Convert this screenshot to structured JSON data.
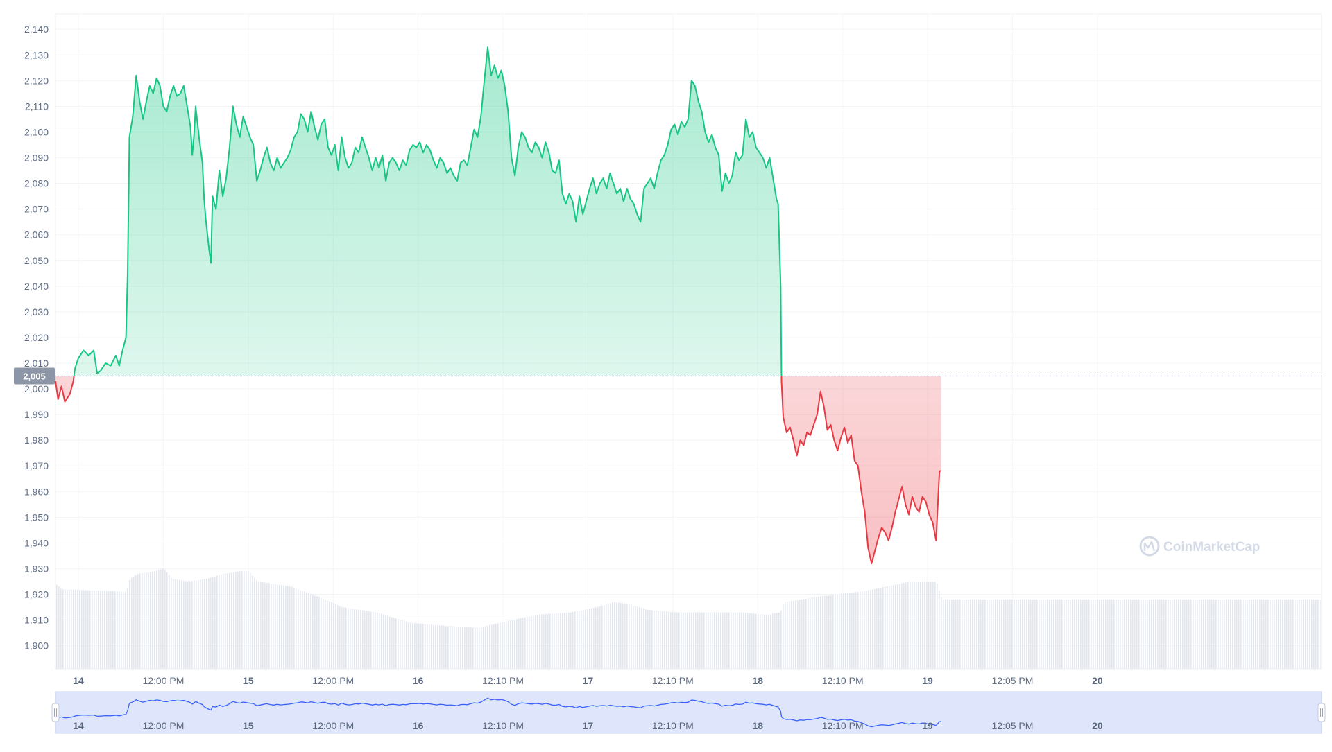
{
  "chart_data": {
    "type": "area",
    "y_ticks": [
      1900,
      1910,
      1920,
      1930,
      1940,
      1950,
      1960,
      1970,
      1980,
      1990,
      2000,
      2010,
      2020,
      2030,
      2040,
      2050,
      2060,
      2070,
      2080,
      2090,
      2100,
      2110,
      2120,
      2130,
      2140
    ],
    "y_tick_labels": [
      "1,900",
      "1,910",
      "1,920",
      "1,930",
      "1,940",
      "1,950",
      "1,960",
      "1,970",
      "1,980",
      "1,990",
      "2,000",
      "2,010",
      "2,020",
      "2,030",
      "2,040",
      "2,050",
      "2,060",
      "2,070",
      "2,080",
      "2,090",
      "2,100",
      "2,110",
      "2,120",
      "2,130",
      "2,140"
    ],
    "ylim": [
      1891,
      2146
    ],
    "x_ticks": [
      {
        "label": "14",
        "t": 0.5,
        "bold": true
      },
      {
        "label": "12:00 PM",
        "t": 1.0,
        "bold": false
      },
      {
        "label": "15",
        "t": 1.5,
        "bold": true
      },
      {
        "label": "12:00 PM",
        "t": 2.0,
        "bold": false
      },
      {
        "label": "16",
        "t": 2.5,
        "bold": true
      },
      {
        "label": "12:10 PM",
        "t": 3.0,
        "bold": false
      },
      {
        "label": "17",
        "t": 3.5,
        "bold": true
      },
      {
        "label": "12:10 PM",
        "t": 4.0,
        "bold": false
      },
      {
        "label": "18",
        "t": 4.5,
        "bold": true
      },
      {
        "label": "12:10 PM",
        "t": 5.0,
        "bold": false
      },
      {
        "label": "19",
        "t": 5.5,
        "bold": true
      },
      {
        "label": "12:05 PM",
        "t": 6.0,
        "bold": false
      },
      {
        "label": "20",
        "t": 6.5,
        "bold": true
      }
    ],
    "xlim": [
      0.365,
      7.82
    ],
    "reference_value": 2005,
    "reference_label": "2,005",
    "up_color": "#16c784",
    "down_color": "#ea3943",
    "navigator_color": "#3861fb",
    "price_anchors": [
      [
        0.365,
        2003
      ],
      [
        0.38,
        1996
      ],
      [
        0.4,
        2001
      ],
      [
        0.42,
        1995
      ],
      [
        0.45,
        1998
      ],
      [
        0.47,
        2003
      ],
      [
        0.48,
        2008
      ],
      [
        0.5,
        2012
      ],
      [
        0.53,
        2015
      ],
      [
        0.56,
        2013
      ],
      [
        0.59,
        2015
      ],
      [
        0.61,
        2006
      ],
      [
        0.63,
        2007
      ],
      [
        0.66,
        2010
      ],
      [
        0.69,
        2009
      ],
      [
        0.72,
        2013
      ],
      [
        0.74,
        2009
      ],
      [
        0.76,
        2015
      ],
      [
        0.78,
        2020
      ],
      [
        0.79,
        2045
      ],
      [
        0.8,
        2098
      ],
      [
        0.82,
        2106
      ],
      [
        0.84,
        2122
      ],
      [
        0.86,
        2112
      ],
      [
        0.88,
        2105
      ],
      [
        0.9,
        2112
      ],
      [
        0.92,
        2118
      ],
      [
        0.94,
        2115
      ],
      [
        0.96,
        2121
      ],
      [
        0.98,
        2118
      ],
      [
        1.0,
        2110
      ],
      [
        1.02,
        2108
      ],
      [
        1.04,
        2114
      ],
      [
        1.06,
        2118
      ],
      [
        1.08,
        2114
      ],
      [
        1.1,
        2115
      ],
      [
        1.12,
        2118
      ],
      [
        1.14,
        2110
      ],
      [
        1.16,
        2102
      ],
      [
        1.17,
        2091
      ],
      [
        1.18,
        2098
      ],
      [
        1.19,
        2110
      ],
      [
        1.21,
        2098
      ],
      [
        1.23,
        2088
      ],
      [
        1.24,
        2074
      ],
      [
        1.25,
        2066
      ],
      [
        1.27,
        2054
      ],
      [
        1.28,
        2049
      ],
      [
        1.29,
        2075
      ],
      [
        1.31,
        2070
      ],
      [
        1.33,
        2085
      ],
      [
        1.35,
        2075
      ],
      [
        1.37,
        2082
      ],
      [
        1.39,
        2094
      ],
      [
        1.41,
        2110
      ],
      [
        1.43,
        2103
      ],
      [
        1.45,
        2098
      ],
      [
        1.47,
        2106
      ],
      [
        1.49,
        2102
      ],
      [
        1.51,
        2098
      ],
      [
        1.53,
        2095
      ],
      [
        1.55,
        2081
      ],
      [
        1.57,
        2085
      ],
      [
        1.59,
        2090
      ],
      [
        1.61,
        2094
      ],
      [
        1.63,
        2088
      ],
      [
        1.65,
        2085
      ],
      [
        1.67,
        2090
      ],
      [
        1.69,
        2086
      ],
      [
        1.71,
        2088
      ],
      [
        1.73,
        2090
      ],
      [
        1.75,
        2093
      ],
      [
        1.77,
        2098
      ],
      [
        1.79,
        2100
      ],
      [
        1.81,
        2107
      ],
      [
        1.83,
        2105
      ],
      [
        1.85,
        2100
      ],
      [
        1.87,
        2108
      ],
      [
        1.89,
        2102
      ],
      [
        1.91,
        2097
      ],
      [
        1.93,
        2103
      ],
      [
        1.95,
        2105
      ],
      [
        1.97,
        2094
      ],
      [
        1.99,
        2091
      ],
      [
        2.01,
        2095
      ],
      [
        2.03,
        2085
      ],
      [
        2.05,
        2098
      ],
      [
        2.07,
        2090
      ],
      [
        2.09,
        2086
      ],
      [
        2.11,
        2088
      ],
      [
        2.13,
        2094
      ],
      [
        2.15,
        2092
      ],
      [
        2.17,
        2098
      ],
      [
        2.19,
        2094
      ],
      [
        2.21,
        2090
      ],
      [
        2.23,
        2085
      ],
      [
        2.25,
        2090
      ],
      [
        2.27,
        2086
      ],
      [
        2.29,
        2091
      ],
      [
        2.31,
        2081
      ],
      [
        2.33,
        2088
      ],
      [
        2.35,
        2090
      ],
      [
        2.37,
        2088
      ],
      [
        2.39,
        2085
      ],
      [
        2.41,
        2089
      ],
      [
        2.43,
        2087
      ],
      [
        2.45,
        2093
      ],
      [
        2.47,
        2095
      ],
      [
        2.49,
        2094
      ],
      [
        2.51,
        2096
      ],
      [
        2.53,
        2092
      ],
      [
        2.55,
        2095
      ],
      [
        2.57,
        2093
      ],
      [
        2.59,
        2089
      ],
      [
        2.61,
        2086
      ],
      [
        2.63,
        2090
      ],
      [
        2.65,
        2088
      ],
      [
        2.67,
        2084
      ],
      [
        2.69,
        2086
      ],
      [
        2.71,
        2083
      ],
      [
        2.73,
        2081
      ],
      [
        2.75,
        2088
      ],
      [
        2.77,
        2089
      ],
      [
        2.79,
        2087
      ],
      [
        2.81,
        2094
      ],
      [
        2.83,
        2101
      ],
      [
        2.85,
        2098
      ],
      [
        2.87,
        2106
      ],
      [
        2.89,
        2120
      ],
      [
        2.91,
        2133
      ],
      [
        2.93,
        2122
      ],
      [
        2.95,
        2126
      ],
      [
        2.97,
        2121
      ],
      [
        2.99,
        2124
      ],
      [
        3.01,
        2118
      ],
      [
        3.03,
        2108
      ],
      [
        3.05,
        2090
      ],
      [
        3.07,
        2083
      ],
      [
        3.09,
        2094
      ],
      [
        3.11,
        2100
      ],
      [
        3.13,
        2098
      ],
      [
        3.15,
        2094
      ],
      [
        3.17,
        2092
      ],
      [
        3.19,
        2096
      ],
      [
        3.21,
        2094
      ],
      [
        3.23,
        2090
      ],
      [
        3.25,
        2096
      ],
      [
        3.27,
        2092
      ],
      [
        3.29,
        2085
      ],
      [
        3.31,
        2084
      ],
      [
        3.33,
        2089
      ],
      [
        3.35,
        2076
      ],
      [
        3.37,
        2072
      ],
      [
        3.39,
        2076
      ],
      [
        3.41,
        2073
      ],
      [
        3.43,
        2065
      ],
      [
        3.45,
        2075
      ],
      [
        3.47,
        2068
      ],
      [
        3.49,
        2073
      ],
      [
        3.51,
        2078
      ],
      [
        3.53,
        2082
      ],
      [
        3.55,
        2076
      ],
      [
        3.57,
        2080
      ],
      [
        3.59,
        2082
      ],
      [
        3.61,
        2078
      ],
      [
        3.63,
        2084
      ],
      [
        3.65,
        2080
      ],
      [
        3.67,
        2076
      ],
      [
        3.69,
        2078
      ],
      [
        3.71,
        2073
      ],
      [
        3.73,
        2078
      ],
      [
        3.75,
        2074
      ],
      [
        3.77,
        2072
      ],
      [
        3.79,
        2068
      ],
      [
        3.81,
        2065
      ],
      [
        3.83,
        2078
      ],
      [
        3.85,
        2080
      ],
      [
        3.87,
        2082
      ],
      [
        3.89,
        2078
      ],
      [
        3.91,
        2084
      ],
      [
        3.93,
        2089
      ],
      [
        3.95,
        2091
      ],
      [
        3.97,
        2095
      ],
      [
        3.99,
        2101
      ],
      [
        4.01,
        2103
      ],
      [
        4.03,
        2099
      ],
      [
        4.05,
        2104
      ],
      [
        4.07,
        2102
      ],
      [
        4.09,
        2105
      ],
      [
        4.11,
        2120
      ],
      [
        4.13,
        2118
      ],
      [
        4.15,
        2112
      ],
      [
        4.17,
        2108
      ],
      [
        4.19,
        2100
      ],
      [
        4.21,
        2096
      ],
      [
        4.23,
        2099
      ],
      [
        4.25,
        2094
      ],
      [
        4.27,
        2091
      ],
      [
        4.29,
        2077
      ],
      [
        4.31,
        2084
      ],
      [
        4.33,
        2080
      ],
      [
        4.35,
        2083
      ],
      [
        4.37,
        2092
      ],
      [
        4.39,
        2089
      ],
      [
        4.41,
        2091
      ],
      [
        4.43,
        2105
      ],
      [
        4.45,
        2098
      ],
      [
        4.47,
        2100
      ],
      [
        4.49,
        2094
      ],
      [
        4.51,
        2092
      ],
      [
        4.53,
        2090
      ],
      [
        4.55,
        2086
      ],
      [
        4.57,
        2090
      ],
      [
        4.59,
        2082
      ],
      [
        4.61,
        2074
      ],
      [
        4.62,
        2072
      ],
      [
        4.635,
        2040
      ],
      [
        4.64,
        2003
      ],
      [
        4.65,
        1989
      ],
      [
        4.67,
        1983
      ],
      [
        4.69,
        1985
      ],
      [
        4.71,
        1980
      ],
      [
        4.73,
        1974
      ],
      [
        4.75,
        1980
      ],
      [
        4.77,
        1978
      ],
      [
        4.79,
        1983
      ],
      [
        4.81,
        1982
      ],
      [
        4.83,
        1986
      ],
      [
        4.85,
        1990
      ],
      [
        4.87,
        1999
      ],
      [
        4.89,
        1993
      ],
      [
        4.91,
        1984
      ],
      [
        4.93,
        1986
      ],
      [
        4.95,
        1980
      ],
      [
        4.97,
        1976
      ],
      [
        4.99,
        1981
      ],
      [
        5.01,
        1985
      ],
      [
        5.03,
        1979
      ],
      [
        5.05,
        1982
      ],
      [
        5.07,
        1972
      ],
      [
        5.09,
        1970
      ],
      [
        5.11,
        1960
      ],
      [
        5.13,
        1952
      ],
      [
        5.15,
        1938
      ],
      [
        5.17,
        1932
      ],
      [
        5.19,
        1937
      ],
      [
        5.21,
        1942
      ],
      [
        5.23,
        1946
      ],
      [
        5.25,
        1944
      ],
      [
        5.27,
        1941
      ],
      [
        5.29,
        1946
      ],
      [
        5.31,
        1952
      ],
      [
        5.33,
        1957
      ],
      [
        5.35,
        1962
      ],
      [
        5.37,
        1955
      ],
      [
        5.39,
        1951
      ],
      [
        5.41,
        1958
      ],
      [
        5.43,
        1954
      ],
      [
        5.45,
        1952
      ],
      [
        5.47,
        1958
      ],
      [
        5.49,
        1956
      ],
      [
        5.51,
        1951
      ],
      [
        5.53,
        1948
      ],
      [
        5.55,
        1941
      ],
      [
        5.57,
        1968
      ],
      [
        5.58,
        1968
      ]
    ],
    "volume_anchors": [
      [
        0.365,
        1924
      ],
      [
        0.4,
        1922
      ],
      [
        0.78,
        1921
      ],
      [
        0.8,
        1926
      ],
      [
        0.85,
        1928
      ],
      [
        0.95,
        1929
      ],
      [
        1.0,
        1930
      ],
      [
        1.05,
        1926
      ],
      [
        1.15,
        1925
      ],
      [
        1.25,
        1926
      ],
      [
        1.35,
        1928
      ],
      [
        1.45,
        1929
      ],
      [
        1.5,
        1929
      ],
      [
        1.55,
        1925
      ],
      [
        1.75,
        1923
      ],
      [
        1.95,
        1918
      ],
      [
        2.05,
        1915
      ],
      [
        2.25,
        1913
      ],
      [
        2.45,
        1909
      ],
      [
        2.6,
        1908
      ],
      [
        2.85,
        1907
      ],
      [
        3.05,
        1910
      ],
      [
        3.2,
        1912
      ],
      [
        3.4,
        1913
      ],
      [
        3.55,
        1915
      ],
      [
        3.65,
        1917
      ],
      [
        3.75,
        1916
      ],
      [
        3.85,
        1914
      ],
      [
        4.0,
        1913
      ],
      [
        4.2,
        1913
      ],
      [
        4.4,
        1913
      ],
      [
        4.55,
        1912
      ],
      [
        4.63,
        1913
      ],
      [
        4.65,
        1917
      ],
      [
        4.75,
        1918
      ],
      [
        4.95,
        1920
      ],
      [
        5.1,
        1921
      ],
      [
        5.25,
        1923
      ],
      [
        5.4,
        1925
      ],
      [
        5.55,
        1925
      ],
      [
        5.58,
        1918
      ],
      [
        5.82,
        1918
      ]
    ]
  },
  "watermark": {
    "brand": "CoinMarketCap"
  }
}
